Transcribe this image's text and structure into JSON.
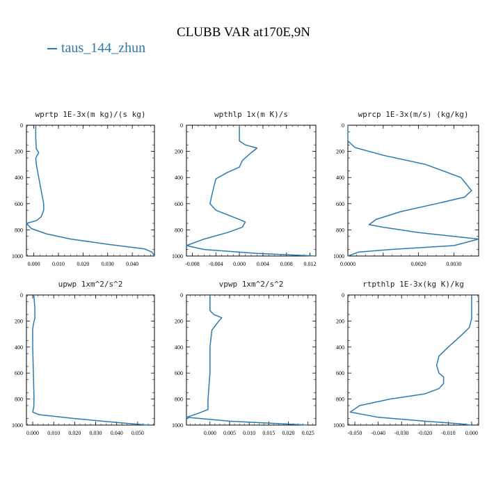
{
  "title": "CLUBB VAR at170E,9N",
  "legend": [
    {
      "name": "taus_144_zhun",
      "color": "#2a7ab0"
    }
  ],
  "chart_data": [
    {
      "type": "line",
      "title": "wprtp  1E-3x(m kg)/(s kg)",
      "xlim": [
        -0.003,
        0.049
      ],
      "ylim": [
        1000,
        0
      ],
      "xticks": [
        0.0,
        0.01,
        0.02,
        0.03,
        0.04
      ],
      "xticklabels": [
        "0.000",
        "0.010",
        "0.020",
        "0.030",
        "0.040"
      ],
      "yticks": [
        0,
        200,
        400,
        600,
        800,
        1000
      ],
      "yticklabels": [
        "0",
        "200",
        "400",
        "600",
        "800",
        "1000"
      ],
      "series": [
        {
          "name": "taus_144_zhun",
          "x": [
            0.0008,
            0.0008,
            0.001,
            0.002,
            0.0008,
            0.001,
            0.002,
            0.003,
            0.004,
            0.004,
            0.003,
            0.001,
            -0.003,
            -0.001,
            0.005,
            0.015,
            0.03,
            0.045,
            0.048,
            0.049
          ],
          "y": [
            0,
            100,
            180,
            210,
            250,
            300,
            400,
            500,
            600,
            650,
            700,
            730,
            750,
            790,
            830,
            870,
            910,
            945,
            970,
            1000
          ]
        }
      ]
    },
    {
      "type": "line",
      "title": "wpthlp  1x(m K)/s",
      "xlim": [
        -0.009,
        0.013
      ],
      "ylim": [
        1000,
        0
      ],
      "xticks": [
        -0.008,
        -0.004,
        0.0,
        0.004,
        0.008,
        0.012
      ],
      "xticklabels": [
        "-0.008",
        "-0.004",
        "0.000",
        "0.004",
        "0.008",
        "0.012"
      ],
      "yticks": [
        0,
        200,
        400,
        600,
        800,
        1000
      ],
      "yticklabels": [
        "0",
        "200",
        "400",
        "600",
        "800",
        "1000"
      ],
      "series": [
        {
          "name": "taus_144_zhun",
          "x": [
            0.0,
            0.0,
            0.001,
            0.003,
            0.002,
            0.0005,
            0.0,
            -0.002,
            -0.004,
            -0.0045,
            -0.005,
            -0.004,
            0.0,
            0.001,
            0.0005,
            -0.002,
            -0.006,
            -0.009,
            -0.006,
            0.003,
            0.013
          ],
          "y": [
            0,
            120,
            150,
            175,
            210,
            270,
            320,
            360,
            410,
            500,
            600,
            650,
            720,
            740,
            780,
            820,
            870,
            920,
            950,
            980,
            1000
          ]
        }
      ]
    },
    {
      "type": "line",
      "title": "wprcp  1E-3x(m/s) (kg/kg)",
      "xlim": [
        0.0,
        0.0037
      ],
      "ylim": [
        1000,
        0
      ],
      "xticks": [
        0.0,
        0.001,
        0.002,
        0.003
      ],
      "xticklabels": [
        "0.0000",
        "",
        "0.0020",
        "0.0030"
      ],
      "yticks": [
        0,
        200,
        400,
        600,
        800,
        1000
      ],
      "yticklabels": [
        "0",
        "200",
        "400",
        "600",
        "800",
        "1000"
      ],
      "series": [
        {
          "name": "taus_144_zhun",
          "x": [
            0.0,
            0.0,
            0.0002,
            0.001,
            0.0022,
            0.0032,
            0.0035,
            0.0033,
            0.0025,
            0.0015,
            0.0008,
            0.0006,
            0.001,
            0.002,
            0.0037,
            0.003,
            0.0012,
            0.0003,
            0.0
          ],
          "y": [
            0,
            120,
            170,
            230,
            300,
            400,
            500,
            550,
            600,
            660,
            720,
            760,
            780,
            820,
            870,
            920,
            950,
            970,
            1000
          ]
        }
      ]
    },
    {
      "type": "line",
      "title": "upwp  1xm^2/s^2",
      "xlim": [
        -0.003,
        0.058
      ],
      "ylim": [
        1000,
        0
      ],
      "xticks": [
        0.0,
        0.01,
        0.02,
        0.03,
        0.04,
        0.05
      ],
      "xticklabels": [
        "0.000",
        "0.010",
        "0.020",
        "0.030",
        "0.040",
        "0.050"
      ],
      "yticks": [
        0,
        200,
        400,
        600,
        800,
        1000
      ],
      "yticklabels": [
        "0",
        "200",
        "400",
        "600",
        "800",
        "1000"
      ],
      "series": [
        {
          "name": "taus_144_zhun",
          "x": [
            0.0005,
            0.001,
            0.001,
            0.0005,
            0.0,
            0.0,
            0.0003,
            0.0006,
            0.0005,
            0.0,
            0.003,
            0.02,
            0.04,
            0.055
          ],
          "y": [
            0,
            100,
            180,
            210,
            260,
            400,
            600,
            800,
            860,
            900,
            920,
            950,
            980,
            1000
          ]
        }
      ]
    },
    {
      "type": "line",
      "title": "vpwp  1xm^2/s^2",
      "xlim": [
        -0.006,
        0.027
      ],
      "ylim": [
        1000,
        0
      ],
      "xticks": [
        0.0,
        0.005,
        0.01,
        0.015,
        0.02,
        0.025
      ],
      "xticklabels": [
        "0.000",
        "0.005",
        "0.010",
        "0.015",
        "0.020",
        "0.025"
      ],
      "yticks": [
        0,
        200,
        400,
        600,
        800,
        1000
      ],
      "yticklabels": [
        "0",
        "200",
        "400",
        "600",
        "800",
        "1000"
      ],
      "series": [
        {
          "name": "taus_144_zhun",
          "x": [
            0.0,
            0.0,
            0.001,
            0.003,
            0.002,
            0.0005,
            0.0,
            0.0,
            -0.0005,
            -0.0005,
            -0.003,
            -0.006,
            0.005,
            0.025
          ],
          "y": [
            0,
            120,
            150,
            175,
            210,
            270,
            400,
            600,
            800,
            880,
            910,
            940,
            970,
            1000
          ]
        }
      ]
    },
    {
      "type": "line",
      "title": "rtpthlp  1E-3x(kg K)/kg",
      "xlim": [
        -0.053,
        0.003
      ],
      "ylim": [
        1000,
        0
      ],
      "xticks": [
        -0.05,
        -0.04,
        -0.03,
        -0.02,
        -0.01,
        0.0
      ],
      "xticklabels": [
        "-0.050",
        "-0.040",
        "-0.030",
        "-0.020",
        "-0.010",
        "0.000"
      ],
      "yticks": [
        0,
        200,
        400,
        600,
        800,
        1000
      ],
      "yticklabels": [
        "0",
        "200",
        "400",
        "600",
        "800",
        "1000"
      ],
      "series": [
        {
          "name": "taus_144_zhun",
          "x": [
            0.0,
            0.0,
            -0.001,
            -0.005,
            -0.01,
            -0.014,
            -0.015,
            -0.014,
            -0.012,
            -0.012,
            -0.014,
            -0.02,
            -0.035,
            -0.048,
            -0.052,
            -0.04,
            -0.02,
            -0.005,
            0.0
          ],
          "y": [
            0,
            180,
            250,
            320,
            400,
            470,
            540,
            600,
            630,
            680,
            720,
            760,
            800,
            850,
            900,
            940,
            970,
            990,
            1000
          ]
        }
      ]
    }
  ]
}
